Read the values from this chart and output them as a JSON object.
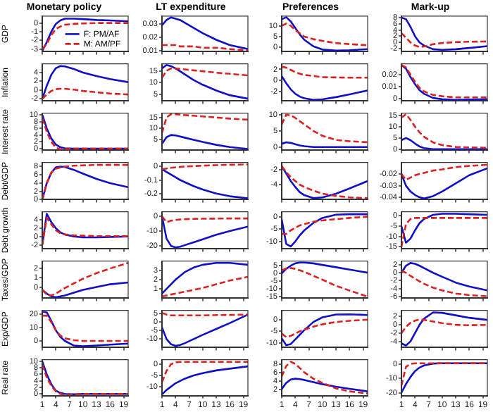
{
  "chart_data": [
    {
      "type": "line",
      "title": "Monetary policy",
      "ylabel": "GDP",
      "legend": "bottom right",
      "x": [
        1,
        2,
        3,
        4,
        5,
        6,
        8,
        10,
        13,
        16,
        20
      ],
      "xlim": [
        1,
        20
      ],
      "xticks": [
        1,
        4,
        7,
        10,
        13,
        16,
        19
      ],
      "ylim": [
        -3.3,
        0.8
      ],
      "yticks": [
        -3,
        -2,
        -1,
        0
      ],
      "tick_labels": "y",
      "series": [
        {
          "name": "F: PM/AF",
          "color": "#1010c8",
          "line_style": "solid",
          "values": [
            -3.2,
            -2.2,
            -1,
            -0.1,
            0.3,
            0.5,
            0.5,
            0.45,
            0.35,
            0.3,
            0.2
          ]
        },
        {
          "name": "M: AM/PF",
          "color": "#dd2020",
          "line_style": "dashed",
          "values": [
            -3,
            -2.4,
            -1.4,
            -0.7,
            -0.4,
            -0.2,
            -0.1,
            -0.05,
            0,
            0,
            0
          ]
        }
      ]
    },
    {
      "type": "line",
      "title": "LT expenditure",
      "x": [
        1,
        2,
        3,
        4,
        5,
        6,
        8,
        10,
        13,
        16,
        20
      ],
      "xlim": [
        1,
        20
      ],
      "xticks": [
        1,
        4,
        7,
        10,
        13,
        16,
        19
      ],
      "ylim": [
        0.009,
        0.036
      ],
      "yticks": [
        0.01,
        0.02,
        0.03
      ],
      "tick_labels": "y",
      "series": [
        {
          "color": "#1010c8",
          "line_style": "solid",
          "values": [
            0.029,
            0.033,
            0.035,
            0.034,
            0.033,
            0.031,
            0.027,
            0.023,
            0.018,
            0.014,
            0.011
          ]
        },
        {
          "color": "#dd2020",
          "line_style": "dashed",
          "values": [
            0.014,
            0.014,
            0.014,
            0.014,
            0.013,
            0.013,
            0.013,
            0.012,
            0.012,
            0.011,
            0.01
          ]
        }
      ]
    },
    {
      "type": "line",
      "title": "Preferences",
      "x": [
        1,
        2,
        3,
        4,
        5,
        6,
        8,
        10,
        13,
        16,
        20
      ],
      "xlim": [
        1,
        20
      ],
      "xticks": [
        1,
        4,
        7,
        10,
        13,
        16,
        19
      ],
      "ylim": [
        -2,
        14.5
      ],
      "yticks": [
        0,
        5,
        10
      ],
      "tick_labels": "y",
      "series": [
        {
          "color": "#1010c8",
          "line_style": "solid",
          "values": [
            13,
            14,
            12,
            9,
            6,
            3.5,
            0.5,
            -1,
            -1.5,
            -1.3,
            -0.8
          ]
        },
        {
          "color": "#dd2020",
          "line_style": "dashed",
          "values": [
            10,
            11,
            10,
            8,
            6.5,
            5,
            3.8,
            3,
            2,
            1.5,
            1
          ]
        }
      ]
    },
    {
      "type": "line",
      "title": "Mark-up",
      "x": [
        1,
        2,
        3,
        4,
        5,
        6,
        8,
        10,
        13,
        16,
        20
      ],
      "xlim": [
        1,
        20
      ],
      "xticks": [
        1,
        4,
        7,
        10,
        13,
        16,
        19
      ],
      "ylim": [
        -3,
        8.5
      ],
      "yticks": [
        -2,
        0,
        2,
        4,
        6,
        8
      ],
      "tick_labels": "y",
      "series": [
        {
          "color": "#1010c8",
          "line_style": "solid",
          "values": [
            8,
            7.5,
            5,
            2,
            0,
            -1,
            -2.2,
            -2.4,
            -2.2,
            -1.8,
            -1.2
          ]
        },
        {
          "color": "#dd2020",
          "line_style": "dashed",
          "values": [
            3,
            1.5,
            0,
            -1,
            -1.5,
            -1.3,
            -0.6,
            -0.2,
            0.1,
            0.2,
            0.3
          ]
        }
      ]
    },
    {
      "type": "line",
      "ylabel": "Inflation",
      "x": [
        1,
        2,
        3,
        4,
        5,
        6,
        8,
        10,
        13,
        16,
        20
      ],
      "xlim": [
        1,
        20
      ],
      "xticks": [
        1,
        4,
        7,
        10,
        13,
        16,
        19
      ],
      "ylim": [
        -2.5,
        6
      ],
      "yticks": [
        -2,
        0,
        2,
        4
      ],
      "tick_labels": "y",
      "series": [
        {
          "color": "#1010c8",
          "line_style": "solid",
          "values": [
            -2,
            1,
            3.5,
            5,
            5.5,
            5.4,
            4.8,
            4,
            3.2,
            2.5,
            1.8
          ]
        },
        {
          "color": "#dd2020",
          "line_style": "dashed",
          "values": [
            -2,
            -1,
            -0.2,
            0.2,
            0.3,
            0.3,
            0.1,
            -0.2,
            -0.5,
            -0.8,
            -1
          ]
        }
      ]
    },
    {
      "type": "line",
      "x": [
        1,
        2,
        3,
        4,
        5,
        6,
        8,
        10,
        13,
        16,
        20
      ],
      "xlim": [
        1,
        20
      ],
      "xticks": [
        1,
        4,
        7,
        10,
        13,
        16,
        19
      ],
      "ylim": [
        2,
        18
      ],
      "yticks": [
        5,
        10,
        15
      ],
      "tick_labels": "y",
      "series": [
        {
          "color": "#1010c8",
          "line_style": "solid",
          "values": [
            16,
            17.5,
            17,
            16,
            14.8,
            13.5,
            11,
            9,
            6.5,
            4.5,
            3
          ]
        },
        {
          "color": "#dd2020",
          "line_style": "dashed",
          "values": [
            12,
            15,
            16,
            16,
            15.8,
            15.6,
            15.2,
            14.8,
            14.2,
            13.7,
            13
          ]
        }
      ]
    },
    {
      "type": "line",
      "x": [
        1,
        2,
        3,
        4,
        5,
        6,
        8,
        10,
        13,
        16,
        20
      ],
      "xlim": [
        1,
        20
      ],
      "xticks": [
        1,
        4,
        7,
        10,
        13,
        16,
        19
      ],
      "ylim": [
        -3.7,
        3
      ],
      "yticks": [
        -2,
        0,
        2
      ],
      "tick_labels": "y",
      "series": [
        {
          "color": "#1010c8",
          "line_style": "solid",
          "values": [
            0.8,
            -0.5,
            -1.6,
            -2.4,
            -2.9,
            -3.2,
            -3.5,
            -3.4,
            -3,
            -2.5,
            -1.8
          ]
        },
        {
          "color": "#dd2020",
          "line_style": "dashed",
          "values": [
            2.5,
            2.3,
            1.9,
            1.5,
            1.2,
            1,
            0.8,
            0.6,
            0.55,
            0.5,
            0.5
          ]
        }
      ]
    },
    {
      "type": "line",
      "x": [
        1,
        2,
        3,
        4,
        5,
        6,
        8,
        10,
        13,
        16,
        20
      ],
      "xlim": [
        1,
        20
      ],
      "xticks": [
        1,
        4,
        7,
        10,
        13,
        16,
        19
      ],
      "ylim": [
        -0.002,
        0.029
      ],
      "yticks": [
        0,
        0.01,
        0.02
      ],
      "tick_labels": "y",
      "series": [
        {
          "color": "#1010c8",
          "line_style": "solid",
          "values": [
            0.028,
            0.025,
            0.018,
            0.012,
            0.007,
            0.004,
            0.0005,
            -0.0005,
            -0.001,
            -0.0008,
            -0.0005
          ]
        },
        {
          "color": "#dd2020",
          "line_style": "dashed",
          "values": [
            0.028,
            0.026,
            0.02,
            0.014,
            0.009,
            0.006,
            0.003,
            0.002,
            0.001,
            0.001,
            0.001
          ]
        }
      ]
    },
    {
      "type": "line",
      "ylabel": "Interest rate",
      "x": [
        1,
        2,
        3,
        4,
        5,
        6,
        8,
        10,
        13,
        16,
        20
      ],
      "xlim": [
        1,
        20
      ],
      "xticks": [
        1,
        4,
        7,
        10,
        13,
        16,
        19
      ],
      "ylim": [
        -0.5,
        10.5
      ],
      "yticks": [
        0,
        2,
        4,
        6,
        8,
        10
      ],
      "tick_labels": "y",
      "series": [
        {
          "color": "#1010c8",
          "line_style": "solid",
          "values": [
            10,
            6,
            3,
            1.2,
            0.4,
            0.1,
            0,
            0,
            0,
            0,
            0
          ]
        },
        {
          "color": "#dd2020",
          "line_style": "dashed",
          "values": [
            9,
            5,
            2,
            0.3,
            -0.2,
            -0.2,
            0,
            0,
            0,
            0,
            0
          ]
        }
      ]
    },
    {
      "type": "line",
      "x": [
        1,
        2,
        3,
        4,
        5,
        6,
        8,
        10,
        13,
        16,
        20
      ],
      "xlim": [
        1,
        20
      ],
      "xticks": [
        1,
        4,
        7,
        10,
        13,
        16,
        19
      ],
      "ylim": [
        0,
        17
      ],
      "yticks": [
        5,
        10,
        15
      ],
      "tick_labels": "y",
      "series": [
        {
          "color": "#1010c8",
          "line_style": "solid",
          "values": [
            3,
            6,
            7,
            6.8,
            6.3,
            5.8,
            4.8,
            3.8,
            2.5,
            1.5,
            0.6
          ]
        },
        {
          "color": "#dd2020",
          "line_style": "dashed",
          "values": [
            8,
            15,
            16.5,
            16.5,
            16.3,
            16.1,
            15.8,
            15.5,
            15,
            14.5,
            14
          ]
        }
      ]
    },
    {
      "type": "line",
      "x": [
        1,
        2,
        3,
        4,
        5,
        6,
        8,
        10,
        13,
        16,
        20
      ],
      "xlim": [
        1,
        20
      ],
      "xticks": [
        1,
        4,
        7,
        10,
        13,
        16,
        19
      ],
      "ylim": [
        -1,
        10.5
      ],
      "yticks": [
        0,
        5,
        10
      ],
      "tick_labels": "y",
      "series": [
        {
          "color": "#1010c8",
          "line_style": "solid",
          "values": [
            1,
            1.5,
            1.3,
            0.9,
            0.5,
            0.3,
            0,
            0,
            0,
            0,
            0
          ]
        },
        {
          "color": "#dd2020",
          "line_style": "dashed",
          "values": [
            7,
            10,
            9.8,
            9,
            8,
            7,
            5,
            3.5,
            2.2,
            1.8,
            1.5
          ]
        }
      ]
    },
    {
      "type": "line",
      "x": [
        1,
        2,
        3,
        4,
        5,
        6,
        8,
        10,
        13,
        16,
        20
      ],
      "xlim": [
        1,
        20
      ],
      "xticks": [
        1,
        4,
        7,
        10,
        13,
        16,
        19
      ],
      "ylim": [
        -0.5,
        16
      ],
      "yticks": [
        0,
        5,
        10,
        15
      ],
      "tick_labels": "y",
      "series": [
        {
          "color": "#1010c8",
          "line_style": "solid",
          "values": [
            4,
            5,
            4,
            2.5,
            1.2,
            0.5,
            0,
            0,
            0,
            0,
            0
          ]
        },
        {
          "color": "#dd2020",
          "line_style": "dashed",
          "values": [
            14,
            15.5,
            13,
            10,
            7.5,
            5.5,
            3,
            1.8,
            1,
            0.8,
            0.6
          ]
        }
      ]
    },
    {
      "type": "line",
      "ylabel": "Debt/GDP",
      "x": [
        1,
        2,
        3,
        4,
        5,
        6,
        8,
        10,
        13,
        16,
        20
      ],
      "xlim": [
        1,
        20
      ],
      "xticks": [
        1,
        4,
        7,
        10,
        13,
        16,
        19
      ],
      "ylim": [
        0,
        9
      ],
      "yticks": [
        0,
        2,
        4,
        6,
        8
      ],
      "tick_labels": "y",
      "series": [
        {
          "color": "#1010c8",
          "line_style": "solid",
          "values": [
            0,
            4,
            6.5,
            7.8,
            8,
            7.9,
            7.2,
            6.3,
            5,
            4,
            3
          ]
        },
        {
          "color": "#dd2020",
          "line_style": "dashed",
          "values": [
            0,
            4,
            6.5,
            7.5,
            7.8,
            8,
            8.2,
            8.3,
            8.4,
            8.4,
            8.4
          ]
        }
      ]
    },
    {
      "type": "line",
      "x": [
        1,
        2,
        3,
        4,
        5,
        6,
        8,
        10,
        13,
        16,
        20
      ],
      "xlim": [
        1,
        20
      ],
      "xticks": [
        1,
        4,
        7,
        10,
        13,
        16,
        19
      ],
      "ylim": [
        -0.245,
        0.03
      ],
      "yticks": [
        -0.2,
        -0.1,
        0
      ],
      "tick_labels": "y",
      "series": [
        {
          "color": "#1010c8",
          "line_style": "solid",
          "values": [
            -0.02,
            -0.04,
            -0.06,
            -0.08,
            -0.1,
            -0.115,
            -0.145,
            -0.17,
            -0.2,
            -0.22,
            -0.235
          ]
        },
        {
          "color": "#dd2020",
          "line_style": "dashed",
          "values": [
            -0.02,
            -0.015,
            -0.01,
            -0.006,
            -0.003,
            0,
            0.003,
            0.006,
            0.01,
            0.013,
            0.015
          ]
        }
      ]
    },
    {
      "type": "line",
      "x": [
        1,
        2,
        3,
        4,
        5,
        6,
        8,
        10,
        13,
        16,
        20
      ],
      "xlim": [
        1,
        20
      ],
      "xticks": [
        1,
        4,
        7,
        10,
        13,
        16,
        19
      ],
      "ylim": [
        -6,
        -1
      ],
      "yticks": [
        -4,
        -2
      ],
      "tick_labels": "y",
      "series": [
        {
          "color": "#1010c8",
          "line_style": "solid",
          "values": [
            -1.5,
            -2.5,
            -3.5,
            -4.3,
            -5,
            -5.4,
            -5.8,
            -5.7,
            -5.2,
            -4.5,
            -3.5
          ]
        },
        {
          "color": "#dd2020",
          "line_style": "dashed",
          "values": [
            -1.5,
            -2.3,
            -3,
            -3.5,
            -4,
            -4.3,
            -4.8,
            -5.2,
            -5.5,
            -5.7,
            -5.8
          ]
        }
      ]
    },
    {
      "type": "line",
      "x": [
        1,
        2,
        3,
        4,
        5,
        6,
        8,
        10,
        13,
        16,
        20
      ],
      "xlim": [
        1,
        20
      ],
      "xticks": [
        1,
        4,
        7,
        10,
        13,
        16,
        19
      ],
      "ylim": [
        -0.042,
        -0.01
      ],
      "yticks": [
        -0.04,
        -0.03,
        -0.02
      ],
      "tick_labels": "y",
      "series": [
        {
          "color": "#1010c8",
          "line_style": "solid",
          "values": [
            -0.02,
            -0.03,
            -0.035,
            -0.038,
            -0.04,
            -0.041,
            -0.039,
            -0.035,
            -0.028,
            -0.021,
            -0.015
          ]
        },
        {
          "color": "#dd2020",
          "line_style": "dashed",
          "values": [
            -0.02,
            -0.025,
            -0.023,
            -0.021,
            -0.02,
            -0.019,
            -0.017,
            -0.016,
            -0.014,
            -0.013,
            -0.012
          ]
        }
      ]
    },
    {
      "type": "line",
      "ylabel": "Debt growth",
      "x": [
        1,
        2,
        3,
        4,
        5,
        6,
        8,
        10,
        13,
        16,
        20
      ],
      "xlim": [
        1,
        20
      ],
      "xticks": [
        1,
        4,
        7,
        10,
        13,
        16,
        19
      ],
      "ylim": [
        -3,
        6
      ],
      "yticks": [
        -2,
        0,
        2,
        4
      ],
      "tick_labels": "y",
      "series": [
        {
          "color": "#1010c8",
          "line_style": "solid",
          "values": [
            -2,
            5.5,
            3.5,
            2,
            1,
            0.5,
            0,
            -0.2,
            -0.2,
            -0.1,
            0
          ]
        },
        {
          "color": "#dd2020",
          "line_style": "dashed",
          "values": [
            -2,
            4.5,
            3,
            1.5,
            0.8,
            0.5,
            0.3,
            0.2,
            0.1,
            0.1,
            0.1
          ]
        }
      ]
    },
    {
      "type": "line",
      "x": [
        1,
        2,
        3,
        4,
        5,
        6,
        8,
        10,
        13,
        16,
        20
      ],
      "xlim": [
        1,
        20
      ],
      "xticks": [
        1,
        4,
        7,
        10,
        13,
        16,
        19
      ],
      "ylim": [
        -22,
        3
      ],
      "yticks": [
        -20,
        -10,
        0
      ],
      "tick_labels": "y",
      "series": [
        {
          "color": "#1010c8",
          "line_style": "solid",
          "values": [
            0,
            -15,
            -20,
            -21,
            -20.5,
            -19.5,
            -17.5,
            -15.5,
            -12.5,
            -10,
            -7
          ]
        },
        {
          "color": "#dd2020",
          "line_style": "dashed",
          "values": [
            0,
            -4,
            -3,
            -2.5,
            -2.2,
            -2,
            -1.8,
            -1.7,
            -1.6,
            -1.5,
            -1.5
          ]
        }
      ]
    },
    {
      "type": "line",
      "x": [
        1,
        2,
        3,
        4,
        5,
        6,
        8,
        10,
        13,
        16,
        20
      ],
      "xlim": [
        1,
        20
      ],
      "xticks": [
        1,
        4,
        7,
        10,
        13,
        16,
        19
      ],
      "ylim": [
        -13,
        2
      ],
      "yticks": [
        -10,
        -5,
        0
      ],
      "tick_labels": "y",
      "series": [
        {
          "color": "#1010c8",
          "line_style": "solid",
          "values": [
            -1,
            -11,
            -12,
            -10,
            -7.5,
            -5.5,
            -2.5,
            -0.5,
            0.8,
            1,
            1
          ]
        },
        {
          "color": "#dd2020",
          "line_style": "dashed",
          "values": [
            -7,
            -7,
            -5.5,
            -4.5,
            -3.5,
            -3,
            -2,
            -1.5,
            -1,
            -0.5,
            0
          ]
        }
      ]
    },
    {
      "type": "line",
      "x": [
        1,
        2,
        3,
        4,
        5,
        6,
        8,
        10,
        13,
        16,
        20
      ],
      "xlim": [
        1,
        20
      ],
      "xticks": [
        1,
        4,
        7,
        10,
        13,
        16,
        19
      ],
      "ylim": [
        -16,
        2
      ],
      "yticks": [
        -15,
        -10,
        -5,
        0
      ],
      "tick_labels": "y",
      "series": [
        {
          "color": "#1010c8",
          "line_style": "solid",
          "values": [
            -5,
            -13,
            -11,
            -7,
            -3.5,
            -1.5,
            0.5,
            1,
            1,
            0.8,
            0.5
          ]
        },
        {
          "color": "#dd2020",
          "line_style": "dashed",
          "values": [
            -15,
            -4,
            -1.5,
            -1,
            -1,
            -1,
            -1,
            -1,
            -1,
            -1,
            -1
          ]
        }
      ]
    },
    {
      "type": "line",
      "ylabel": "Taxes/GDP",
      "x": [
        1,
        2,
        3,
        4,
        5,
        6,
        8,
        10,
        13,
        16,
        20
      ],
      "xlim": [
        1,
        20
      ],
      "xticks": [
        1,
        4,
        7,
        10,
        13,
        16,
        19
      ],
      "ylim": [
        -1.2,
        2.8
      ],
      "yticks": [
        0,
        1,
        2
      ],
      "tick_labels": "y",
      "series": [
        {
          "color": "#1010c8",
          "line_style": "solid",
          "values": [
            -0.3,
            -0.7,
            -1,
            -1.1,
            -1,
            -0.9,
            -0.6,
            -0.3,
            0,
            0.3,
            0.5
          ]
        },
        {
          "color": "#dd2020",
          "line_style": "dashed",
          "values": [
            -0.3,
            -0.8,
            -0.9,
            -0.7,
            -0.4,
            -0.1,
            0.4,
            0.9,
            1.5,
            2,
            2.6
          ]
        }
      ]
    },
    {
      "type": "line",
      "x": [
        1,
        2,
        3,
        4,
        5,
        6,
        8,
        10,
        13,
        16,
        20
      ],
      "xlim": [
        1,
        20
      ],
      "xticks": [
        1,
        4,
        7,
        10,
        13,
        16,
        19
      ],
      "ylim": [
        0,
        4
      ],
      "yticks": [
        1,
        2,
        3
      ],
      "tick_labels": "y",
      "series": [
        {
          "color": "#1010c8",
          "line_style": "solid",
          "values": [
            0.5,
            1,
            1.5,
            2,
            2.4,
            2.8,
            3.3,
            3.6,
            3.8,
            3.8,
            3.6
          ]
        },
        {
          "color": "#dd2020",
          "line_style": "dashed",
          "values": [
            0.2,
            0.3,
            0.4,
            0.5,
            0.6,
            0.7,
            0.9,
            1.1,
            1.5,
            1.9,
            2.3
          ]
        }
      ]
    },
    {
      "type": "line",
      "x": [
        1,
        2,
        3,
        4,
        5,
        6,
        8,
        10,
        13,
        16,
        20
      ],
      "xlim": [
        1,
        20
      ],
      "xticks": [
        1,
        4,
        7,
        10,
        13,
        16,
        19
      ],
      "ylim": [
        -16,
        8
      ],
      "yticks": [
        -15,
        -10,
        -5,
        0,
        5
      ],
      "tick_labels": "y",
      "series": [
        {
          "color": "#1010c8",
          "line_style": "solid",
          "values": [
            0,
            3,
            5,
            6.5,
            7,
            7,
            6.5,
            5.5,
            4,
            2.5,
            0.5
          ]
        },
        {
          "color": "#dd2020",
          "line_style": "dashed",
          "values": [
            2,
            3.2,
            3.5,
            3,
            2,
            1,
            -1.5,
            -4,
            -8,
            -11,
            -15
          ]
        }
      ]
    },
    {
      "type": "line",
      "x": [
        1,
        2,
        3,
        4,
        5,
        6,
        8,
        10,
        13,
        16,
        20
      ],
      "xlim": [
        1,
        20
      ],
      "xticks": [
        1,
        4,
        7,
        10,
        13,
        16,
        19
      ],
      "ylim": [
        -6.5,
        3
      ],
      "yticks": [
        -6,
        -4,
        -2,
        0,
        2
      ],
      "tick_labels": "y",
      "series": [
        {
          "color": "#1010c8",
          "line_style": "solid",
          "values": [
            0,
            1.8,
            2.5,
            2.3,
            1.8,
            1.2,
            0,
            -1,
            -2.5,
            -3.5,
            -4.5
          ]
        },
        {
          "color": "#dd2020",
          "line_style": "dashed",
          "values": [
            0.5,
            0,
            -0.8,
            -1.5,
            -2.2,
            -2.8,
            -3.8,
            -4.5,
            -5.3,
            -5.7,
            -6
          ]
        }
      ]
    },
    {
      "type": "line",
      "ylabel": "Exp/GDP",
      "x": [
        1,
        2,
        3,
        4,
        5,
        6,
        8,
        10,
        13,
        16,
        20
      ],
      "xlim": [
        1,
        20
      ],
      "xticks": [
        1,
        4,
        7,
        10,
        13,
        16,
        19
      ],
      "ylim": [
        -5,
        23
      ],
      "yticks": [
        0,
        10,
        20
      ],
      "tick_labels": "y",
      "series": [
        {
          "color": "#1010c8",
          "line_style": "solid",
          "values": [
            22,
            21.5,
            15,
            8,
            3,
            0,
            -3.5,
            -4,
            -3.5,
            -2.8,
            -2
          ]
        },
        {
          "color": "#dd2020",
          "line_style": "dashed",
          "values": [
            19,
            19,
            14,
            8,
            4,
            2,
            0.5,
            0,
            0,
            0,
            0
          ]
        }
      ]
    },
    {
      "type": "line",
      "x": [
        1,
        2,
        3,
        4,
        5,
        6,
        8,
        10,
        13,
        16,
        20
      ],
      "xlim": [
        1,
        20
      ],
      "xticks": [
        1,
        4,
        7,
        10,
        13,
        16,
        19
      ],
      "ylim": [
        -15,
        7
      ],
      "yticks": [
        -10,
        -5,
        0,
        5
      ],
      "tick_labels": "y",
      "series": [
        {
          "color": "#1010c8",
          "line_style": "solid",
          "values": [
            -3,
            -10,
            -13,
            -14,
            -13.5,
            -12.5,
            -10,
            -7.5,
            -4,
            -0.5,
            4.5
          ]
        },
        {
          "color": "#dd2020",
          "line_style": "dashed",
          "values": [
            5.5,
            4.5,
            4,
            4,
            4,
            4,
            4,
            4,
            4.2,
            4.3,
            4.5
          ]
        }
      ]
    },
    {
      "type": "line",
      "x": [
        1,
        2,
        3,
        4,
        5,
        6,
        8,
        10,
        13,
        16,
        20
      ],
      "xlim": [
        1,
        20
      ],
      "xticks": [
        1,
        4,
        7,
        10,
        13,
        16,
        19
      ],
      "ylim": [
        -12,
        4
      ],
      "yticks": [
        -10,
        -5,
        0
      ],
      "tick_labels": "y",
      "series": [
        {
          "color": "#1010c8",
          "line_style": "solid",
          "values": [
            -8,
            -11,
            -10.5,
            -8.5,
            -6.5,
            -4.5,
            -1,
            1,
            2.2,
            2.3,
            2
          ]
        },
        {
          "color": "#dd2020",
          "line_style": "dashed",
          "values": [
            -6,
            -7.5,
            -7,
            -6,
            -5,
            -4.3,
            -3,
            -2,
            -1,
            -0.5,
            0
          ]
        }
      ]
    },
    {
      "type": "line",
      "x": [
        1,
        2,
        3,
        4,
        5,
        6,
        8,
        10,
        13,
        16,
        20
      ],
      "xlim": [
        1,
        20
      ],
      "xticks": [
        1,
        4,
        7,
        10,
        13,
        16,
        19
      ],
      "ylim": [
        -5.5,
        3.5
      ],
      "yticks": [
        -4,
        -2,
        0,
        2
      ],
      "tick_labels": "y",
      "series": [
        {
          "color": "#1010c8",
          "line_style": "solid",
          "values": [
            -4.5,
            -5,
            -4,
            -2,
            0,
            1.5,
            3,
            2.9,
            2.3,
            1.7,
            1.2
          ]
        },
        {
          "color": "#dd2020",
          "line_style": "dashed",
          "values": [
            -2,
            -0.5,
            0.5,
            1,
            1.3,
            1.2,
            0.8,
            0.4,
            0,
            -0.1,
            0
          ]
        }
      ]
    },
    {
      "type": "line",
      "ylabel": "Real rate",
      "x": [
        1,
        2,
        3,
        4,
        5,
        6,
        8,
        10,
        13,
        16,
        20
      ],
      "xlim": [
        1,
        20
      ],
      "xticks": [
        1,
        4,
        7,
        10,
        13,
        16,
        19
      ],
      "ylim": [
        -0.5,
        10.5
      ],
      "yticks": [
        0,
        2,
        4,
        6,
        8,
        10
      ],
      "series": [
        {
          "color": "#1010c8",
          "line_style": "solid",
          "values": [
            10,
            6,
            3,
            1,
            0.3,
            0,
            -0.1,
            0,
            0,
            0,
            0
          ]
        },
        {
          "color": "#dd2020",
          "line_style": "dashed",
          "values": [
            9,
            5,
            2.5,
            0.8,
            0,
            -0.3,
            -0.2,
            0,
            0,
            0,
            0
          ]
        }
      ]
    },
    {
      "type": "line",
      "x": [
        1,
        2,
        3,
        4,
        5,
        6,
        8,
        10,
        13,
        16,
        20
      ],
      "xlim": [
        1,
        20
      ],
      "xticks": [
        1,
        4,
        7,
        10,
        13,
        16,
        19
      ],
      "ylim": [
        -14,
        2
      ],
      "yticks": [
        -10,
        -5,
        0
      ],
      "series": [
        {
          "color": "#1010c8",
          "line_style": "solid",
          "values": [
            -13.5,
            -11.5,
            -10,
            -8.5,
            -7.5,
            -6.5,
            -5,
            -4,
            -2.8,
            -2,
            -1
          ]
        },
        {
          "color": "#dd2020",
          "line_style": "dashed",
          "values": [
            -8,
            -3,
            0,
            0.8,
            1,
            1,
            1,
            1,
            1,
            1,
            1
          ]
        }
      ]
    },
    {
      "type": "line",
      "x": [
        1,
        2,
        3,
        4,
        5,
        6,
        8,
        10,
        13,
        16,
        20
      ],
      "xlim": [
        1,
        20
      ],
      "xticks": [
        1,
        4,
        7,
        10,
        13,
        16,
        19
      ],
      "ylim": [
        0.5,
        9
      ],
      "yticks": [
        2,
        4,
        6,
        8
      ],
      "series": [
        {
          "color": "#1010c8",
          "line_style": "solid",
          "values": [
            2,
            3.5,
            4.3,
            4.5,
            4.4,
            4.2,
            3.7,
            3.2,
            2.6,
            2.1,
            1.5
          ]
        },
        {
          "color": "#dd2020",
          "line_style": "dashed",
          "values": [
            5,
            7.5,
            8.5,
            8,
            7,
            6,
            4.5,
            3.5,
            2.2,
            1.5,
            1
          ]
        }
      ]
    },
    {
      "type": "line",
      "x": [
        1,
        2,
        3,
        4,
        5,
        6,
        8,
        10,
        13,
        16,
        20
      ],
      "xlim": [
        1,
        20
      ],
      "xticks": [
        1,
        4,
        7,
        10,
        13,
        16,
        19
      ],
      "ylim": [
        -22,
        3
      ],
      "yticks": [
        -20,
        -10,
        0
      ],
      "series": [
        {
          "color": "#1010c8",
          "line_style": "solid",
          "values": [
            -20,
            -14,
            -9,
            -5,
            -2.5,
            -1,
            0.3,
            0.5,
            0.5,
            0.5,
            0.5
          ]
        },
        {
          "color": "#dd2020",
          "line_style": "dashed",
          "values": [
            -15,
            -2,
            0,
            0.5,
            0.5,
            0.5,
            0.5,
            0.5,
            0.5,
            0.5,
            0.5
          ]
        }
      ]
    }
  ]
}
